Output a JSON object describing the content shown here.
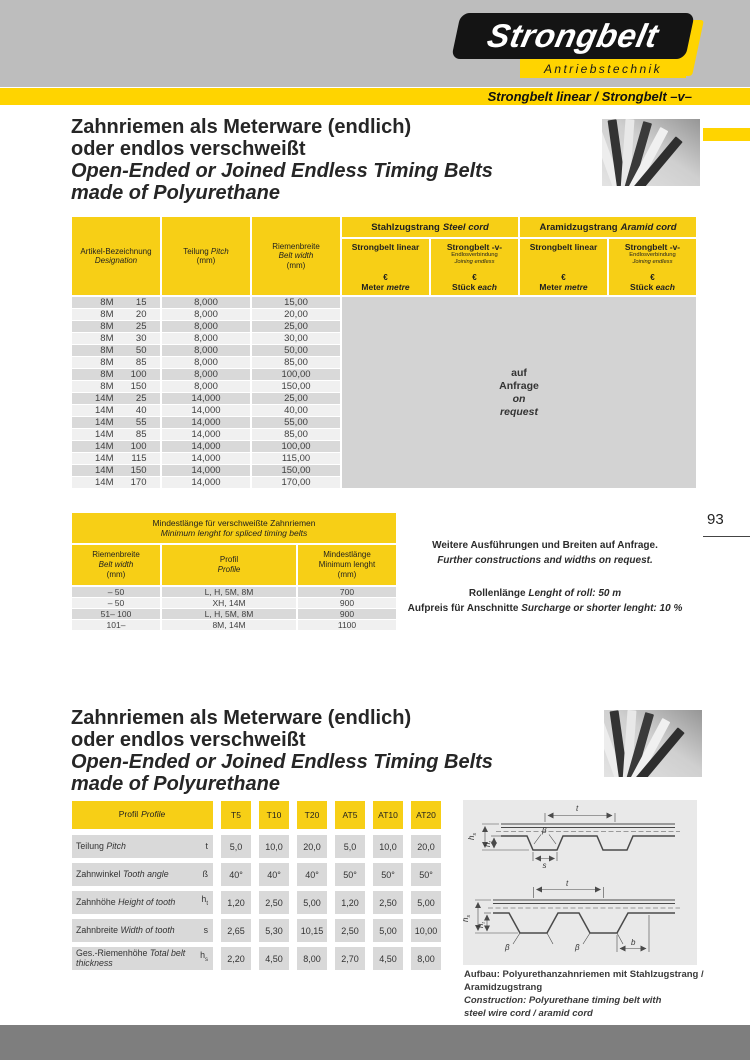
{
  "colors": {
    "brand_yellow": "#FFD400",
    "table_yellow": "#F7CF16",
    "header_gray": "#BDBDBD",
    "row_gray": "#D9D9D9",
    "row_light": "#F0F0F0",
    "panel_gray": "#D3D3D3",
    "diagram_gray": "#E9E9E9",
    "footer_gray": "#7E7E7E"
  },
  "header": {
    "logo_title": "Strongbelt",
    "logo_subtitle": "Antriebstechnik",
    "tagline": "Strongbelt linear / Strongbelt –v–"
  },
  "section_title": {
    "de1": "Zahnriemen als Meterware (endlich)",
    "de2": "oder endlos verschweißt",
    "en1": "Open-Ended or Joined Endless Timing Belts",
    "en2": "made of Polyurethane"
  },
  "price_table": {
    "col_article": {
      "de": "Artikel-Bezeichnung",
      "en": "Designation"
    },
    "col_pitch": {
      "de": "Teilung",
      "en": "Pitch",
      "unit": "(mm)"
    },
    "col_width": {
      "de": "Riemenbreite",
      "en": "Belt width",
      "unit": "(mm)"
    },
    "group_steel": {
      "de": "Stahlzugstrang",
      "en": "Steel cord"
    },
    "group_aramid": {
      "de": "Aramidzugstrang",
      "en": "Aramid cord"
    },
    "col_linear": {
      "title": "Strongbelt linear",
      "currency": "€",
      "unit_de": "Meter",
      "unit_en": "metre"
    },
    "col_joined": {
      "title": "Strongbelt -v-",
      "note_de": "Endlosverbindung",
      "note_en": "Joining endless",
      "currency": "€",
      "unit_de": "Stück",
      "unit_en": "each"
    },
    "rows": [
      [
        "8M",
        "15",
        "8,000",
        "15,00"
      ],
      [
        "8M",
        "20",
        "8,000",
        "20,00"
      ],
      [
        "8M",
        "25",
        "8,000",
        "25,00"
      ],
      [
        "8M",
        "30",
        "8,000",
        "30,00"
      ],
      [
        "8M",
        "50",
        "8,000",
        "50,00"
      ],
      [
        "8M",
        "85",
        "8,000",
        "85,00"
      ],
      [
        "8M",
        "100",
        "8,000",
        "100,00"
      ],
      [
        "8M",
        "150",
        "8,000",
        "150,00"
      ],
      [
        "14M",
        "25",
        "14,000",
        "25,00"
      ],
      [
        "14M",
        "40",
        "14,000",
        "40,00"
      ],
      [
        "14M",
        "55",
        "14,000",
        "55,00"
      ],
      [
        "14M",
        "85",
        "14,000",
        "85,00"
      ],
      [
        "14M",
        "100",
        "14,000",
        "100,00"
      ],
      [
        "14M",
        "115",
        "14,000",
        "115,00"
      ],
      [
        "14M",
        "150",
        "14,000",
        "150,00"
      ],
      [
        "14M",
        "170",
        "14,000",
        "170,00"
      ]
    ],
    "availability": {
      "de1": "auf",
      "de2": "Anfrage",
      "en1": "on",
      "en2": "request"
    }
  },
  "page_number": "93",
  "min_length_table": {
    "title_de": "Mindestlänge für verschweißte Zahnriemen",
    "title_en": "Minimum lenght for spliced timing belts",
    "col_width": {
      "de": "Riemenbreite",
      "en": "Belt width",
      "unit": "(mm)"
    },
    "col_profile": {
      "de": "Profil",
      "en": "Profile"
    },
    "col_min": {
      "de": "Mindestlänge",
      "en": "Minimum lenght",
      "unit": "(mm)"
    },
    "rows": [
      [
        "– 50",
        "L, H, 5M, 8M",
        "700"
      ],
      [
        "– 50",
        "XH, 14M",
        "900"
      ],
      [
        "51– 100",
        "L, H, 5M, 8M",
        "900"
      ],
      [
        "101–",
        "8M, 14M",
        "1100"
      ]
    ]
  },
  "notes": {
    "further_de": "Weitere Ausführungen und Breiten auf Anfrage.",
    "further_en": "Further constructions and widths on request.",
    "roll_de": "Rollenlänge",
    "roll_en": "Lenght of roll: 50 m",
    "surcharge_de": "Aufpreis für Anschnitte",
    "surcharge_en": "Surcharge or shorter lenght: 10 %"
  },
  "profile_table": {
    "header": {
      "de": "Profil",
      "en": "Profile"
    },
    "columns": [
      "T5",
      "T10",
      "T20",
      "AT5",
      "AT10",
      "AT20"
    ],
    "rows": [
      {
        "de": "Teilung",
        "en": "Pitch",
        "sym": "t",
        "sub": "",
        "values": [
          "5,0",
          "10,0",
          "20,0",
          "5,0",
          "10,0",
          "20,0"
        ]
      },
      {
        "de": "Zahnwinkel",
        "en": "Tooth angle",
        "sym": "ß",
        "sub": "",
        "values": [
          "40°",
          "40°",
          "40°",
          "50°",
          "50°",
          "50°"
        ]
      },
      {
        "de": "Zahnhöhe",
        "en": "Height of tooth",
        "sym": "h",
        "sub": "t",
        "values": [
          "1,20",
          "2,50",
          "5,00",
          "1,20",
          "2,50",
          "5,00"
        ]
      },
      {
        "de": "Zahnbreite",
        "en": "Width of tooth",
        "sym": "s",
        "sub": "",
        "values": [
          "2,65",
          "5,30",
          "10,15",
          "2,50",
          "5,00",
          "10,00"
        ]
      },
      {
        "de": "Ges.-Riemenhöhe",
        "en": "Total belt thickness",
        "sym": "h",
        "sub": "s",
        "values": [
          "2,20",
          "4,50",
          "8,00",
          "2,70",
          "4,50",
          "8,00"
        ]
      }
    ]
  },
  "diagram": {
    "labels": {
      "t": "t",
      "beta": "β",
      "h": "h",
      "s": "s",
      "b": "b",
      "sub_t": "t",
      "sub_s": "s"
    },
    "caption_de1": "Aufbau: Polyurethanzahnriemen mit Stahlzugstrang /",
    "caption_de2": "Aramidzugstrang",
    "caption_en1": "Construction: Polyurethane timing belt with",
    "caption_en2": "steel wire cord / aramid cord"
  }
}
